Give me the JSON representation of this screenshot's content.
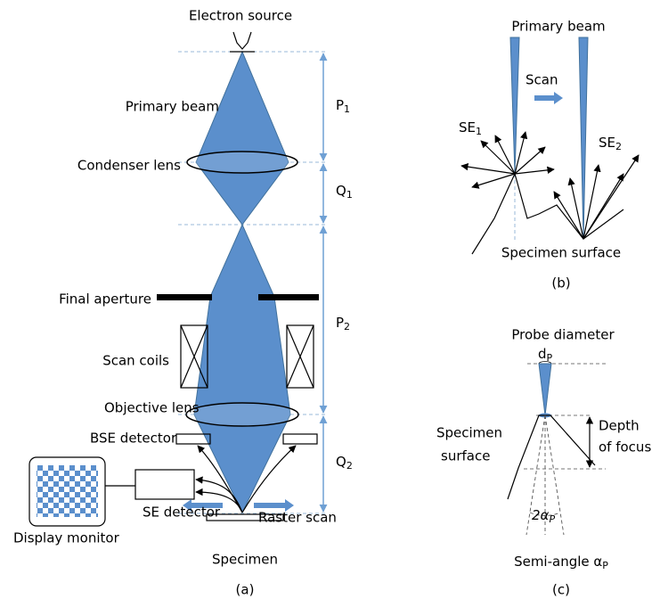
{
  "panel_a": {
    "electron_source": "Electron source",
    "primary_beam": "Primary beam",
    "condenser_lens": "Condenser lens",
    "final_aperture": "Final aperture",
    "scan_coils": "Scan coils",
    "objective_lens": "Objective lens",
    "bse_detector": "BSE detector",
    "se_detector": "SE detector",
    "display_monitor": "Display monitor",
    "raster_scan": "Raster scan",
    "specimen": "Specimen",
    "caption": "(a)",
    "p1": {
      "text": "P",
      "sub": "1"
    },
    "q1": {
      "text": "Q",
      "sub": "1"
    },
    "p2": {
      "text": "P",
      "sub": "2"
    },
    "q2": {
      "text": "Q",
      "sub": "2"
    }
  },
  "panel_b": {
    "primary_beam": "Primary beam",
    "scan": "Scan",
    "se1": {
      "text": "SE",
      "sub": "1"
    },
    "se2": {
      "text": "SE",
      "sub": "2"
    },
    "specimen_surface": "Specimen surface",
    "caption": "(b)"
  },
  "panel_c": {
    "probe_diameter": "Probe diameter",
    "dp": {
      "text": "d",
      "sub": "P"
    },
    "depth": "Depth",
    "of_focus": "of focus",
    "specimen": "Specimen",
    "surface": "surface",
    "two_alpha": {
      "text": "2α",
      "sub": "P"
    },
    "semi_angle": {
      "text": "Semi-angle α",
      "sub": "P"
    },
    "caption": "(c)"
  }
}
